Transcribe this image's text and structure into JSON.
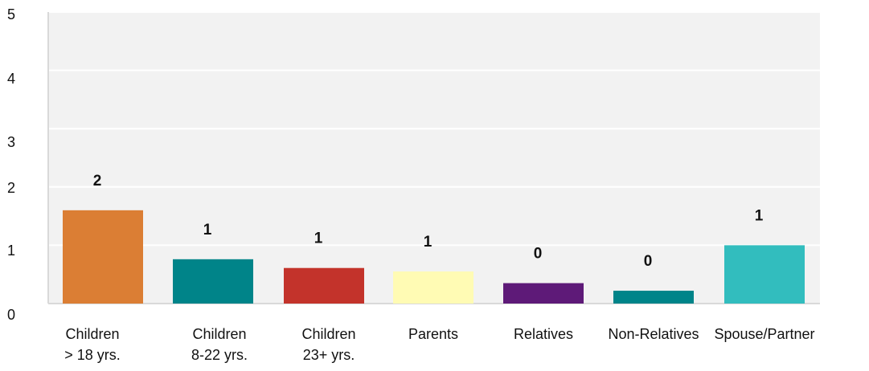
{
  "chart_data": {
    "type": "bar",
    "categories": [
      [
        "Children",
        "> 18 yrs."
      ],
      [
        "Children",
        "8-22 yrs."
      ],
      [
        "Children",
        "23+ yrs."
      ],
      [
        "Parents"
      ],
      [
        "Relatives"
      ],
      [
        "Non-Relatives"
      ],
      [
        "Spouse/Partner"
      ]
    ],
    "values": [
      1.6,
      0.76,
      0.61,
      0.55,
      0.35,
      0.22,
      1.0
    ],
    "data_labels": [
      "2",
      "1",
      "1",
      "1",
      "0",
      "0",
      "1"
    ],
    "colors": [
      "#DB7E34",
      "#008489",
      "#C3332B",
      "#FFFBB4",
      "#5E1A78",
      "#008489",
      "#32BDBE"
    ],
    "yticks": [
      "0",
      "1",
      "2",
      "3",
      "4",
      "5"
    ],
    "ylim": [
      0,
      5
    ],
    "grid": true,
    "plot_background": "#F2F2F2",
    "gridline_color": "#FFFFFF"
  }
}
